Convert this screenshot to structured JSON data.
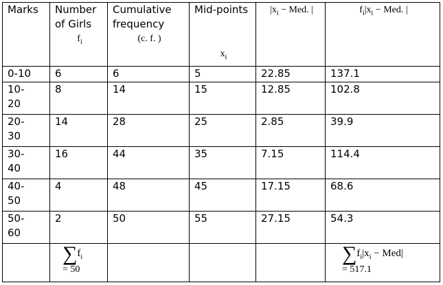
{
  "table": {
    "header": [
      {
        "label": "Marks"
      },
      {
        "label": "Number of Girls",
        "math": [
          {
            "text": "f"
          },
          {
            "sub": "i"
          }
        ]
      },
      {
        "label": "Cumulative frequency",
        "math": [
          {
            "text": "(c. f. )"
          }
        ]
      },
      {
        "label": "Mid-points",
        "math": [
          {
            "text": "x"
          },
          {
            "sub": "i"
          }
        ]
      },
      {
        "math": [
          {
            "text": "|x"
          },
          {
            "sub": "i"
          },
          {
            "text": " − Med. |"
          }
        ]
      },
      {
        "math": [
          {
            "text": "f"
          },
          {
            "sub": "i"
          },
          {
            "text": "|x"
          },
          {
            "sub": "i"
          },
          {
            "text": " − Med. |"
          }
        ]
      }
    ],
    "rows": [
      [
        "0-10",
        "6",
        "6",
        "5",
        "22.85",
        "137.1"
      ],
      [
        "10-20",
        "8",
        "14",
        "15",
        "12.85",
        "102.8"
      ],
      [
        "20-30",
        "14",
        "28",
        "25",
        "2.85",
        "39.9"
      ],
      [
        "30-40",
        "16",
        "44",
        "35",
        "7.15",
        "114.4"
      ],
      [
        "40-50",
        "4",
        "48",
        "45",
        "17.15",
        "68.6"
      ],
      [
        "50-60",
        "2",
        "50",
        "55",
        "27.15",
        "54.3"
      ]
    ],
    "footer": {
      "girls_sum": {
        "symbol": "∑",
        "math": [
          {
            "text": "f"
          },
          {
            "sub": "i"
          }
        ],
        "result": "= 50"
      },
      "deviation_sum": {
        "symbol": "∑",
        "math": [
          {
            "text": "f"
          },
          {
            "sub": "i"
          },
          {
            "text": "|x"
          },
          {
            "sub": "i"
          },
          {
            "text": " − Med|"
          }
        ],
        "result": "= 517.1"
      }
    }
  }
}
